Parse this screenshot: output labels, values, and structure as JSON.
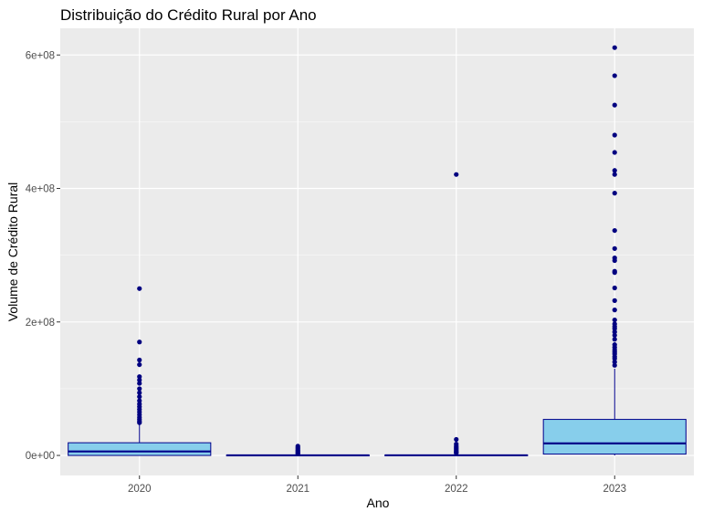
{
  "chart_data": {
    "type": "boxplot",
    "title": "Distribuição do Crédito Rural por Ano",
    "xlabel": "Ano",
    "ylabel": "Volume de Crédito Rural",
    "categories": [
      "2020",
      "2021",
      "2022",
      "2023"
    ],
    "y_ticks": [
      {
        "value": 0,
        "label": "0e+00"
      },
      {
        "value": 200000000,
        "label": "2e+08"
      },
      {
        "value": 400000000,
        "label": "4e+08"
      },
      {
        "value": 600000000,
        "label": "6e+08"
      }
    ],
    "ylim": [
      -30000000,
      640000000
    ],
    "grid": true,
    "colors": {
      "panel": "#ebebeb",
      "grid_major": "#ffffff",
      "box_fill": "#87ceeb",
      "box_line": "#00008b",
      "point": "#000080"
    },
    "boxes": [
      {
        "category": "2020",
        "q1": 0,
        "median": 6000000,
        "q3": 19000000,
        "whisker_low": 0,
        "whisker_high": 47000000,
        "outliers": [
          250000000,
          170000000,
          143000000,
          136000000,
          118000000,
          113000000,
          108000000,
          100000000,
          94000000,
          88000000,
          82000000,
          77000000,
          73000000,
          69000000,
          65000000,
          61000000,
          57000000,
          54000000,
          51000000,
          49000000
        ]
      },
      {
        "category": "2021",
        "q1": 0,
        "median": 200000,
        "q3": 700000,
        "whisker_low": 0,
        "whisker_high": 2000000,
        "outliers": [
          14000000,
          12000000,
          10000000,
          8000000,
          6500000,
          5000000,
          3500000,
          2500000
        ]
      },
      {
        "category": "2022",
        "q1": 0,
        "median": 200000,
        "q3": 800000,
        "whisker_low": 0,
        "whisker_high": 2500000,
        "outliers": [
          421000000,
          24000000,
          17000000,
          14000000,
          12000000,
          10000000,
          8000000,
          6000000,
          4500000,
          3500000
        ]
      },
      {
        "category": "2023",
        "q1": 2000000,
        "median": 18000000,
        "q3": 54000000,
        "whisker_low": 0,
        "whisker_high": 130000000,
        "outliers": [
          611000000,
          569000000,
          525000000,
          480000000,
          454000000,
          427000000,
          421000000,
          393000000,
          337000000,
          310000000,
          296000000,
          292000000,
          276000000,
          274000000,
          251000000,
          232000000,
          218000000,
          203000000,
          197000000,
          193000000,
          190000000,
          185000000,
          180000000,
          174000000,
          166000000,
          162000000,
          158000000,
          155000000,
          152000000,
          148000000,
          145000000,
          140000000,
          135000000
        ]
      }
    ]
  }
}
